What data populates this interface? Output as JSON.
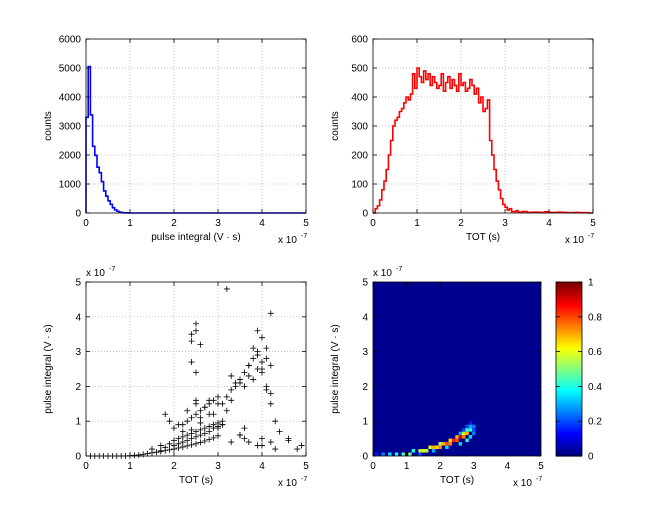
{
  "figure": {
    "background": "#ffffff"
  },
  "chart_data": [
    {
      "type": "line",
      "subtype": "step-histogram",
      "title": "",
      "xlabel": "pulse integral (V · s)",
      "ylabel": "counts",
      "x_multiplier": "x 10",
      "x_exponent": "-7",
      "xlim": [
        0,
        5
      ],
      "ylim": [
        0,
        6000
      ],
      "xticks": [
        "0",
        "1",
        "2",
        "3",
        "4",
        "5"
      ],
      "yticks": [
        "0",
        "1000",
        "2000",
        "3000",
        "4000",
        "5000",
        "6000"
      ],
      "grid": true,
      "color": "#0000ff",
      "series": [
        {
          "x": [
            0,
            0.05,
            0.1,
            0.15,
            0.2,
            0.25,
            0.3,
            0.35,
            0.4,
            0.45,
            0.5,
            0.55,
            0.6,
            0.65,
            0.7,
            0.75,
            0.8,
            0.85,
            0.9,
            0.95,
            1.0,
            5.0
          ],
          "y": [
            3300,
            5050,
            3380,
            2300,
            1990,
            1580,
            1390,
            1080,
            760,
            580,
            420,
            300,
            180,
            110,
            60,
            30,
            15,
            8,
            5,
            3,
            0,
            0
          ]
        }
      ]
    },
    {
      "type": "line",
      "subtype": "step-histogram",
      "title": "",
      "xlabel": "TOT (s)",
      "ylabel": "counts",
      "x_multiplier": "x 10",
      "x_exponent": "-7",
      "xlim": [
        0,
        5
      ],
      "ylim": [
        0,
        600
      ],
      "xticks": [
        "0",
        "1",
        "2",
        "3",
        "4",
        "5"
      ],
      "yticks": [
        "0",
        "100",
        "200",
        "300",
        "400",
        "500",
        "600"
      ],
      "grid": true,
      "color": "#ff0000",
      "series": [
        {
          "x": [
            0,
            0.05,
            0.1,
            0.15,
            0.2,
            0.25,
            0.3,
            0.35,
            0.4,
            0.45,
            0.5,
            0.55,
            0.6,
            0.65,
            0.7,
            0.75,
            0.8,
            0.85,
            0.9,
            0.95,
            1.0,
            1.05,
            1.1,
            1.15,
            1.2,
            1.25,
            1.3,
            1.35,
            1.4,
            1.45,
            1.5,
            1.55,
            1.6,
            1.65,
            1.7,
            1.75,
            1.8,
            1.85,
            1.9,
            1.95,
            2.0,
            2.05,
            2.1,
            2.15,
            2.2,
            2.25,
            2.3,
            2.35,
            2.4,
            2.45,
            2.5,
            2.55,
            2.6,
            2.65,
            2.7,
            2.75,
            2.8,
            2.85,
            2.9,
            2.95,
            3.0,
            3.05,
            3.1,
            3.15,
            3.2,
            3.25,
            3.3,
            3.4,
            3.5,
            3.6,
            3.7,
            3.8,
            3.9,
            4.0,
            4.1,
            4.2,
            4.3,
            4.4,
            4.5,
            4.6,
            4.7,
            4.8,
            4.9,
            5.0
          ],
          "y": [
            0,
            15,
            25,
            45,
            80,
            110,
            150,
            200,
            250,
            300,
            320,
            330,
            350,
            360,
            380,
            400,
            390,
            410,
            480,
            430,
            500,
            470,
            450,
            490,
            460,
            480,
            440,
            470,
            450,
            430,
            440,
            480,
            420,
            450,
            470,
            430,
            460,
            440,
            420,
            480,
            440,
            450,
            420,
            430,
            460,
            440,
            410,
            430,
            380,
            400,
            350,
            360,
            390,
            250,
            200,
            150,
            110,
            80,
            50,
            30,
            20,
            10,
            15,
            5,
            5,
            8,
            3,
            5,
            2,
            3,
            3,
            2,
            4,
            2,
            2,
            3,
            2,
            1,
            1,
            2,
            1,
            1,
            0,
            0
          ]
        }
      ]
    },
    {
      "type": "scatter",
      "title": "",
      "xlabel": "TOT (s)",
      "ylabel": "pulse integral (V · s)",
      "x_multiplier": "x 10",
      "x_exponent": "-7",
      "y_multiplier": "x 10",
      "y_exponent": "-7",
      "xlim": [
        0,
        5
      ],
      "ylim": [
        0,
        5
      ],
      "xticks": [
        "0",
        "1",
        "2",
        "3",
        "4",
        "5"
      ],
      "yticks": [
        "0",
        "1",
        "2",
        "3",
        "4",
        "5"
      ],
      "grid": true,
      "marker": "+",
      "color": "#000000",
      "series": [
        {
          "x": [
            0.1,
            0.2,
            0.3,
            0.4,
            0.5,
            0.6,
            0.7,
            0.8,
            0.9,
            1.0,
            1.1,
            1.2,
            1.3,
            1.4,
            1.5,
            1.6,
            1.7,
            1.8,
            1.9,
            2.0,
            2.1,
            2.2,
            2.3,
            2.4,
            2.5,
            2.6,
            2.7,
            2.8,
            2.9,
            3.0,
            1.5,
            1.7,
            1.9,
            2.0,
            2.1,
            2.2,
            2.3,
            2.4,
            2.5,
            2.6,
            2.7,
            2.8,
            2.9,
            3.0,
            3.1,
            1.7,
            1.8,
            2.0,
            2.1,
            2.2,
            2.3,
            2.4,
            2.5,
            2.6,
            2.7,
            2.8,
            2.9,
            3.0,
            2.2,
            2.3,
            2.4,
            2.5,
            2.6,
            2.7,
            2.8,
            2.9,
            3.0,
            3.1,
            2.4,
            2.6,
            2.8,
            3.0,
            3.2,
            3.1,
            3.2,
            3.3,
            3.4,
            3.5,
            3.6,
            3.7,
            3.8,
            3.9,
            4.0,
            4.1,
            4.2,
            3.3,
            3.5,
            3.7,
            3.9,
            4.1,
            3.6,
            3.8,
            4.0,
            4.2,
            3.7,
            3.9,
            4.1,
            3.8,
            4.0,
            3.9,
            4.0,
            4.1,
            4.2,
            4.3,
            4.4,
            4.6,
            4.9,
            3.0,
            3.3,
            3.5,
            3.6,
            4.0,
            4.2,
            2.4,
            2.5,
            2.4,
            2.5,
            2.5,
            2.4,
            2.6,
            2.5,
            2.5,
            3.2,
            3.3,
            3.4,
            4.2,
            3.5,
            3.6,
            3.7,
            3.9,
            4.0,
            4.3,
            4.6,
            4.8,
            1.8,
            1.9,
            2.0,
            2.1,
            2.2,
            2.3,
            2.6,
            2.7,
            2.8,
            2.9,
            3.1,
            3.5
          ],
          "y": [
            0.0,
            0.0,
            0.0,
            0.0,
            0.0,
            0.0,
            0.0,
            0.0,
            0.0,
            0.01,
            0.02,
            0.03,
            0.05,
            0.07,
            0.09,
            0.11,
            0.13,
            0.15,
            0.18,
            0.2,
            0.23,
            0.26,
            0.29,
            0.32,
            0.35,
            0.39,
            0.43,
            0.47,
            0.52,
            0.58,
            0.2,
            0.3,
            0.35,
            0.45,
            0.5,
            0.55,
            0.6,
            0.65,
            0.7,
            0.75,
            0.8,
            0.85,
            0.9,
            0.95,
            1.0,
            0.15,
            0.25,
            0.3,
            0.35,
            0.4,
            0.45,
            0.5,
            0.55,
            0.6,
            0.65,
            0.7,
            0.8,
            0.85,
            0.9,
            1.0,
            1.1,
            1.2,
            1.3,
            1.4,
            1.5,
            1.6,
            1.7,
            0.9,
            0.75,
            0.95,
            1.2,
            1.5,
            1.3,
            1.5,
            1.7,
            1.9,
            2.0,
            2.2,
            2.4,
            2.6,
            2.8,
            3.0,
            2.5,
            2.0,
            1.8,
            1.6,
            2.1,
            2.3,
            2.5,
            2.8,
            2.0,
            2.2,
            2.4,
            2.6,
            2.6,
            2.9,
            3.1,
            3.1,
            3.4,
            3.6,
            2.7,
            1.9,
            1.5,
            1.0,
            0.7,
            0.5,
            0.3,
            0.8,
            0.4,
            0.6,
            0.5,
            0.3,
            0.4,
            2.7,
            2.4,
            3.5,
            3.8,
            3.6,
            3.3,
            3.2,
            1.6,
            1.5,
            4.8,
            2.3,
            2.1,
            4.1,
            0.6,
            0.8,
            0.4,
            0.3,
            0.5,
            0.2,
            0.45,
            0.2,
            1.2,
            1.0,
            0.8,
            0.9,
            0.7,
            1.3,
            1.1,
            1.4,
            1.6,
            1.2,
            0.9,
            0.6
          ]
        }
      ]
    },
    {
      "type": "heatmap",
      "title": "",
      "xlabel": "TOT (s)",
      "ylabel": "pulse integral (V · s)",
      "x_multiplier": "x 10",
      "x_exponent": "-7",
      "y_multiplier": "x 10",
      "y_exponent": "-7",
      "xlim": [
        0,
        5
      ],
      "ylim": [
        0,
        5
      ],
      "xticks": [
        "0",
        "1",
        "2",
        "3",
        "4",
        "5"
      ],
      "yticks": [
        "0",
        "1",
        "2",
        "3",
        "4",
        "5"
      ],
      "grid": false,
      "colormap": "jet",
      "background_color": "#00008f",
      "colorbar": {
        "min": 0,
        "max": 1,
        "ticks": [
          "0",
          "0.2",
          "0.4",
          "0.6",
          "0.8",
          "1"
        ]
      },
      "cells": [
        {
          "x": 0.1,
          "y": 0.05,
          "v": 0.15
        },
        {
          "x": 0.3,
          "y": 0.05,
          "v": 0.25
        },
        {
          "x": 0.5,
          "y": 0.05,
          "v": 0.35
        },
        {
          "x": 0.7,
          "y": 0.05,
          "v": 0.4
        },
        {
          "x": 0.9,
          "y": 0.05,
          "v": 0.45
        },
        {
          "x": 1.1,
          "y": 0.05,
          "v": 0.5
        },
        {
          "x": 1.2,
          "y": 0.15,
          "v": 0.4
        },
        {
          "x": 1.4,
          "y": 0.15,
          "v": 0.55
        },
        {
          "x": 1.5,
          "y": 0.15,
          "v": 0.6
        },
        {
          "x": 1.6,
          "y": 0.15,
          "v": 0.55
        },
        {
          "x": 1.7,
          "y": 0.25,
          "v": 0.6
        },
        {
          "x": 1.8,
          "y": 0.25,
          "v": 0.7
        },
        {
          "x": 1.9,
          "y": 0.25,
          "v": 0.65
        },
        {
          "x": 2.0,
          "y": 0.25,
          "v": 0.75
        },
        {
          "x": 2.0,
          "y": 0.35,
          "v": 0.55
        },
        {
          "x": 2.1,
          "y": 0.35,
          "v": 0.7
        },
        {
          "x": 2.2,
          "y": 0.35,
          "v": 0.8
        },
        {
          "x": 2.3,
          "y": 0.35,
          "v": 0.75
        },
        {
          "x": 2.3,
          "y": 0.45,
          "v": 0.65
        },
        {
          "x": 2.4,
          "y": 0.45,
          "v": 0.85
        },
        {
          "x": 2.5,
          "y": 0.45,
          "v": 0.8
        },
        {
          "x": 2.5,
          "y": 0.55,
          "v": 0.7
        },
        {
          "x": 2.6,
          "y": 0.55,
          "v": 0.9
        },
        {
          "x": 2.7,
          "y": 0.55,
          "v": 0.75
        },
        {
          "x": 2.7,
          "y": 0.65,
          "v": 0.6
        },
        {
          "x": 2.8,
          "y": 0.65,
          "v": 0.7
        },
        {
          "x": 2.8,
          "y": 0.75,
          "v": 0.45
        },
        {
          "x": 2.9,
          "y": 0.75,
          "v": 0.4
        },
        {
          "x": 2.9,
          "y": 0.85,
          "v": 0.3
        },
        {
          "x": 3.0,
          "y": 0.85,
          "v": 0.25
        },
        {
          "x": 1.4,
          "y": 0.05,
          "v": 0.2
        },
        {
          "x": 1.8,
          "y": 0.15,
          "v": 0.3
        },
        {
          "x": 2.2,
          "y": 0.25,
          "v": 0.35
        },
        {
          "x": 2.6,
          "y": 0.35,
          "v": 0.35
        },
        {
          "x": 2.8,
          "y": 0.45,
          "v": 0.4
        },
        {
          "x": 2.9,
          "y": 0.55,
          "v": 0.35
        },
        {
          "x": 2.6,
          "y": 0.65,
          "v": 0.3
        },
        {
          "x": 3.0,
          "y": 0.65,
          "v": 0.25
        },
        {
          "x": 3.0,
          "y": 0.75,
          "v": 0.2
        },
        {
          "x": 2.7,
          "y": 0.75,
          "v": 0.2
        },
        {
          "x": 2.8,
          "y": 0.85,
          "v": 0.2
        },
        {
          "x": 2.9,
          "y": 0.95,
          "v": 0.15
        }
      ]
    }
  ]
}
